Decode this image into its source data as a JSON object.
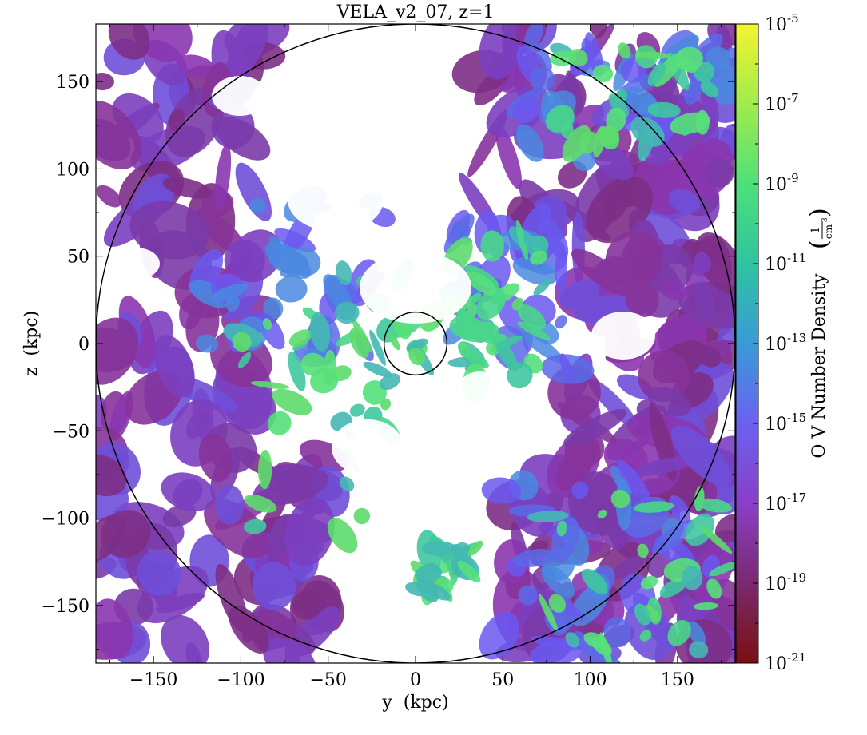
{
  "chart_data": {
    "type": "heatmap",
    "title": "VELA_v2_07, z=1",
    "xlabel": "y  (kpc)",
    "ylabel": "z  (kpc)",
    "xlim": [
      -183,
      183
    ],
    "ylim": [
      -183,
      183
    ],
    "xticks": [
      {
        "value": -150,
        "label": "−150"
      },
      {
        "value": -100,
        "label": "−100"
      },
      {
        "value": -50,
        "label": "−50"
      },
      {
        "value": 0,
        "label": "0"
      },
      {
        "value": 50,
        "label": "50"
      },
      {
        "value": 100,
        "label": "100"
      },
      {
        "value": 150,
        "label": "150"
      }
    ],
    "yticks": [
      {
        "value": 150,
        "label": "150"
      },
      {
        "value": 100,
        "label": "100"
      },
      {
        "value": 50,
        "label": "50"
      },
      {
        "value": 0,
        "label": "0"
      },
      {
        "value": -50,
        "label": "−50"
      },
      {
        "value": -100,
        "label": "−100"
      },
      {
        "value": -150,
        "label": "−150"
      }
    ],
    "circles": [
      {
        "cx": 0,
        "cy": 0,
        "r": 183
      },
      {
        "cx": 0,
        "cy": 0,
        "r": 18
      }
    ],
    "colorbar": {
      "label": "O V Number Density",
      "unit_numerator": "1",
      "unit_denominator": "cm",
      "unit_power": "3",
      "scale": "log",
      "range_exp": [
        -21,
        -5
      ],
      "ticks": [
        {
          "exp": -5,
          "base": "10",
          "power": "-5"
        },
        {
          "exp": -7,
          "base": "10",
          "power": "-7"
        },
        {
          "exp": -9,
          "base": "10",
          "power": "-9"
        },
        {
          "exp": -11,
          "base": "10",
          "power": "-11"
        },
        {
          "exp": -13,
          "base": "10",
          "power": "-13"
        },
        {
          "exp": -15,
          "base": "10",
          "power": "-15"
        },
        {
          "exp": -17,
          "base": "10",
          "power": "-17"
        },
        {
          "exp": -19,
          "base": "10",
          "power": "-19"
        },
        {
          "exp": -21,
          "base": "10",
          "power": "-21"
        }
      ],
      "colormap": [
        "#7a0f0f",
        "#7a2a6e",
        "#8a3ec8",
        "#6a62f0",
        "#3a9ad8",
        "#2ec4a0",
        "#4ee07a",
        "#a0ec4a",
        "#f4f430"
      ]
    },
    "grid": false
  }
}
